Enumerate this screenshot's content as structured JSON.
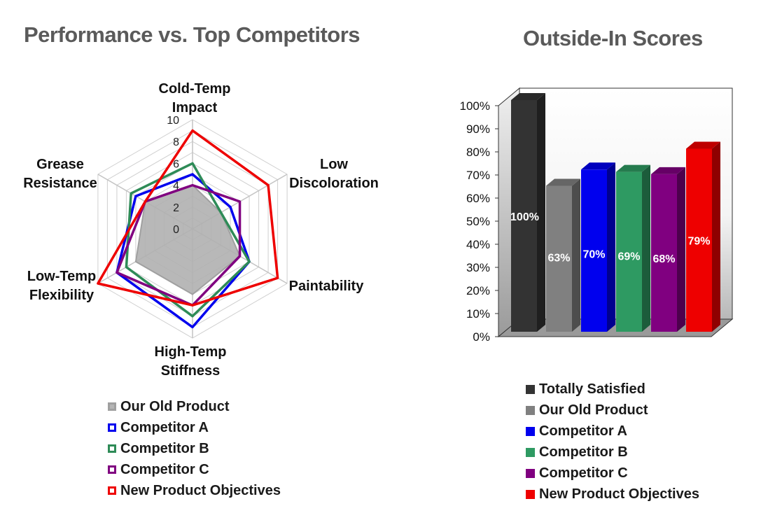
{
  "chart_data": [
    {
      "type": "radar",
      "title": "Performance vs. Top Competitors",
      "axes": [
        "Cold-Temp Impact",
        "Low Discoloration",
        "Paintability",
        "High-Temp Stiffness",
        "Low-Temp Flexibility",
        "Grease Resistance"
      ],
      "axis_label_lines": [
        [
          "Cold-Temp",
          "Impact"
        ],
        [
          "Low",
          "Discoloration"
        ],
        [
          "Paintability"
        ],
        [
          "High-Temp",
          "Stiffness"
        ],
        [
          "Low-Temp",
          "Flexibility"
        ],
        [
          "Grease",
          "Resistance"
        ]
      ],
      "rlim": [
        0,
        10
      ],
      "ticks": [
        "0",
        "2",
        "4",
        "6",
        "8",
        "10"
      ],
      "grid": true,
      "legend_position": "bottom",
      "series": [
        {
          "name": "Our Old Product",
          "values": [
            4,
            3,
            5,
            6,
            6,
            5
          ],
          "color": "#a0a0a0",
          "filled": true
        },
        {
          "name": "Competitor A",
          "values": [
            5,
            4,
            6,
            9,
            8,
            6
          ],
          "color": "#0000ee"
        },
        {
          "name": "Competitor B",
          "values": [
            6,
            3,
            6,
            8,
            7,
            6.5
          ],
          "color": "#2e8b57"
        },
        {
          "name": "Competitor C",
          "values": [
            4,
            5,
            5,
            7,
            8,
            5
          ],
          "color": "#800080"
        },
        {
          "name": "New Product Objectives",
          "values": [
            9,
            8,
            9,
            7,
            10,
            5
          ],
          "color": "#ee0000"
        }
      ]
    },
    {
      "type": "bar",
      "title": "Outside-In Scores",
      "categories": [
        "Totally Satisfied",
        "Our Old Product",
        "Competitor A",
        "Competitor B",
        "Competitor C",
        "New Product Objectives"
      ],
      "values": [
        100,
        63,
        70,
        69,
        68,
        79
      ],
      "data_labels": [
        "100%",
        "63%",
        "70%",
        "69%",
        "68%",
        "79%"
      ],
      "colors": [
        "#333333",
        "#808080",
        "#0000ee",
        "#2e9a62",
        "#800080",
        "#ee0000"
      ],
      "ylim": [
        0,
        100
      ],
      "yticks": [
        "0%",
        "10%",
        "20%",
        "30%",
        "40%",
        "50%",
        "60%",
        "70%",
        "80%",
        "90%",
        "100%"
      ],
      "grid": false,
      "legend_position": "bottom",
      "style": "3d"
    }
  ]
}
